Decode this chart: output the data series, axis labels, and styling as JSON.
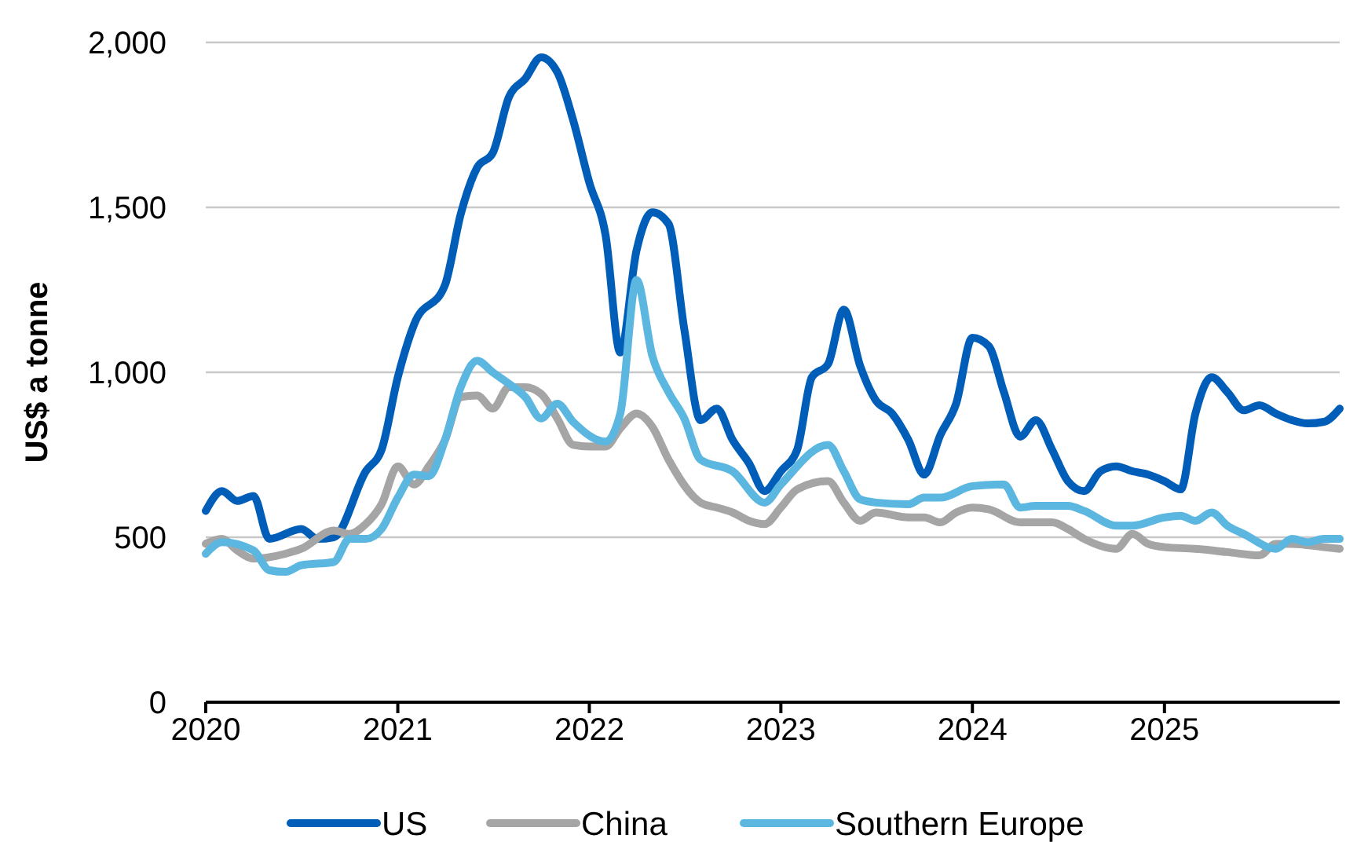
{
  "chart_data": {
    "type": "line",
    "ylabel": "US$ a tonne",
    "xlim": [
      "2020-01",
      "2025-12"
    ],
    "xticks": [
      "2020",
      "2021",
      "2022",
      "2023",
      "2024",
      "2025"
    ],
    "ylim": [
      0,
      2000
    ],
    "yticks": [
      0,
      500,
      {
        "value": 1000,
        "label": "1,000"
      },
      {
        "value": 1500,
        "label": "1,500"
      },
      {
        "value": 2000,
        "label": "2,000"
      }
    ],
    "grid": "y",
    "legend": "bottom",
    "series": [
      {
        "name": "US",
        "color": "#005eb8",
        "x": [
          "2020-01",
          "2020-02",
          "2020-03",
          "2020-04",
          "2020-05",
          "2020-07",
          "2020-08",
          "2020-09",
          "2020-11",
          "2020-12",
          "2021-01",
          "2021-02",
          "2021-04",
          "2021-05",
          "2021-06",
          "2021-07",
          "2021-08",
          "2021-09",
          "2021-10",
          "2021-11",
          "2021-12",
          "2022-01",
          "2022-02",
          "2022-03",
          "2022-04",
          "2022-05",
          "2022-06",
          "2022-07",
          "2022-08",
          "2022-09",
          "2022-10",
          "2022-11",
          "2022-12",
          "2023-01",
          "2023-02",
          "2023-03",
          "2023-04",
          "2023-05",
          "2023-06",
          "2023-07",
          "2023-08",
          "2023-09",
          "2023-10",
          "2023-11",
          "2023-12",
          "2024-01",
          "2024-02",
          "2024-03",
          "2024-04",
          "2024-05",
          "2024-06",
          "2024-07",
          "2024-08",
          "2024-09",
          "2024-10",
          "2024-11",
          "2024-12",
          "2025-01",
          "2025-02",
          "2025-03",
          "2025-04",
          "2025-05",
          "2025-06",
          "2025-07",
          "2025-08",
          "2025-09",
          "2025-10",
          "2025-11",
          "2025-12"
        ],
        "values": [
          580,
          640,
          610,
          625,
          495,
          525,
          495,
          500,
          700,
          765,
          985,
          1145,
          1265,
          1480,
          1620,
          1665,
          1835,
          1890,
          1955,
          1910,
          1765,
          1575,
          1415,
          1060,
          1370,
          1485,
          1450,
          1130,
          855,
          890,
          795,
          725,
          640,
          700,
          765,
          985,
          1025,
          1190,
          1020,
          915,
          875,
          795,
          690,
          810,
          905,
          1105,
          1080,
          940,
          805,
          855,
          765,
          670,
          640,
          700,
          715,
          700,
          690,
          670,
          645,
          875,
          985,
          940,
          885,
          900,
          875,
          855,
          845,
          850,
          890
        ]
      },
      {
        "name": "China",
        "color": "#a5a5a5",
        "x": [
          "2020-01",
          "2020-02",
          "2020-03",
          "2020-04",
          "2020-06",
          "2020-07",
          "2020-09",
          "2020-10",
          "2020-11",
          "2020-12",
          "2021-01",
          "2021-02",
          "2021-03",
          "2021-04",
          "2021-05",
          "2021-06",
          "2021-07",
          "2021-08",
          "2021-09",
          "2021-10",
          "2021-11",
          "2021-12",
          "2022-01",
          "2022-02",
          "2022-03",
          "2022-04",
          "2022-05",
          "2022-06",
          "2022-08",
          "2022-09",
          "2022-10",
          "2022-11",
          "2022-12",
          "2023-01",
          "2023-02",
          "2023-04",
          "2023-05",
          "2023-06",
          "2023-07",
          "2023-09",
          "2023-10",
          "2023-11",
          "2023-12",
          "2024-01",
          "2024-02",
          "2024-04",
          "2024-06",
          "2024-07",
          "2024-08",
          "2024-10",
          "2024-11",
          "2024-12",
          "2025-01",
          "2025-03",
          "2025-05",
          "2025-07",
          "2025-08",
          "2025-09",
          "2025-11",
          "2025-12"
        ],
        "values": [
          480,
          495,
          460,
          435,
          450,
          465,
          520,
          510,
          540,
          600,
          715,
          660,
          715,
          795,
          925,
          930,
          890,
          955,
          955,
          935,
          860,
          780,
          775,
          775,
          830,
          875,
          835,
          735,
          605,
          590,
          575,
          550,
          540,
          590,
          645,
          670,
          605,
          550,
          575,
          560,
          560,
          545,
          575,
          590,
          585,
          545,
          545,
          525,
          495,
          465,
          510,
          480,
          470,
          465,
          455,
          445,
          480,
          480,
          470,
          465
        ]
      },
      {
        "name": "Southern Europe",
        "color": "#5bb6e0",
        "x": [
          "2020-01",
          "2020-02",
          "2020-04",
          "2020-05",
          "2020-06",
          "2020-07",
          "2020-09",
          "2020-10",
          "2020-11",
          "2020-12",
          "2021-01",
          "2021-02",
          "2021-03",
          "2021-04",
          "2021-05",
          "2021-06",
          "2021-07",
          "2021-08",
          "2021-09",
          "2021-10",
          "2021-11",
          "2021-12",
          "2022-02",
          "2022-03",
          "2022-04",
          "2022-05",
          "2022-06",
          "2022-07",
          "2022-08",
          "2022-10",
          "2022-12",
          "2023-01",
          "2023-04",
          "2023-05",
          "2023-06",
          "2023-07",
          "2023-09",
          "2023-10",
          "2023-11",
          "2024-01",
          "2024-03",
          "2024-04",
          "2024-05",
          "2024-07",
          "2024-08",
          "2024-10",
          "2024-11",
          "2025-01",
          "2025-02",
          "2025-03",
          "2025-04",
          "2025-05",
          "2025-06",
          "2025-08",
          "2025-09",
          "2025-10",
          "2025-11",
          "2025-12"
        ],
        "values": [
          450,
          485,
          460,
          400,
          395,
          415,
          425,
          495,
          495,
          525,
          620,
          690,
          685,
          795,
          955,
          1035,
          1000,
          965,
          925,
          860,
          905,
          850,
          790,
          875,
          1280,
          1050,
          940,
          860,
          735,
          700,
          605,
          660,
          780,
          700,
          615,
          605,
          600,
          620,
          620,
          655,
          660,
          590,
          595,
          595,
          580,
          535,
          535,
          560,
          565,
          550,
          575,
          535,
          510,
          465,
          495,
          485,
          495,
          495
        ]
      }
    ]
  }
}
